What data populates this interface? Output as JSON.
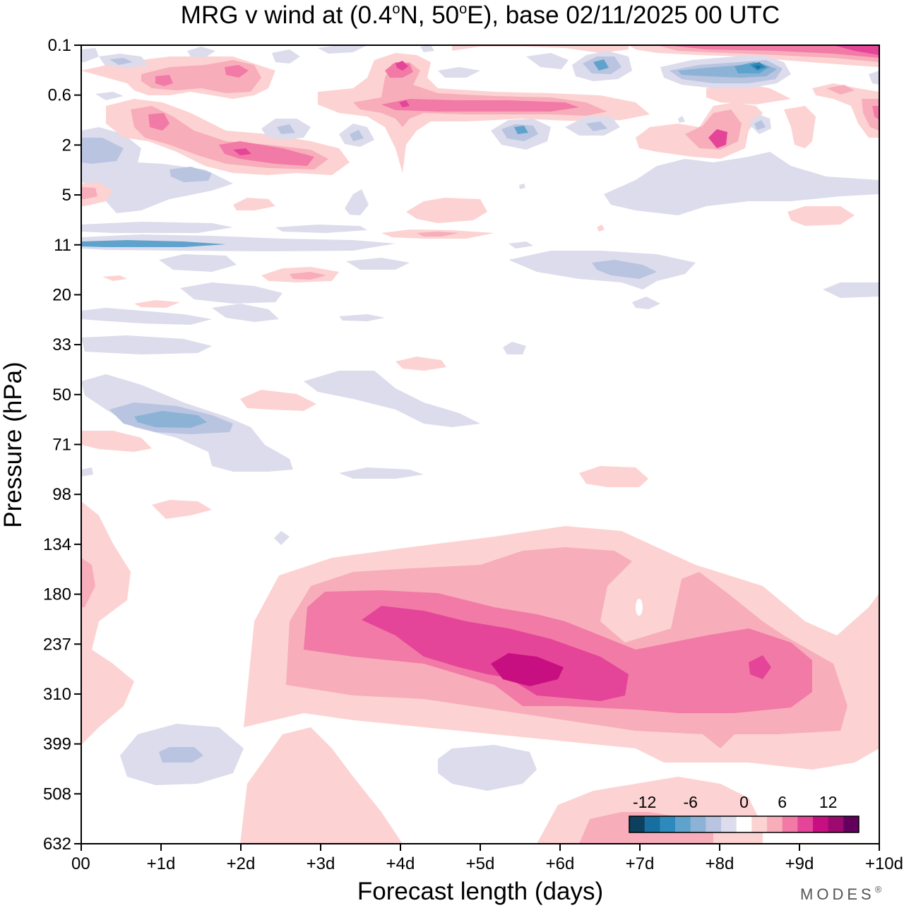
{
  "chart_data": {
    "type": "contour",
    "title": "MRG v wind at (0.4°N, 50°E),  base 02/11/2025  00 UTC",
    "title_parts": {
      "prefix": "MRG v wind at (0.4",
      "deg1": "o",
      "mid": "N, 50",
      "deg2": "o",
      "suffix": "E),  base 02/11/2025  00 UTC"
    },
    "xlabel": "Forecast length (days)",
    "ylabel": "Pressure (hPa)",
    "x_ticks": [
      "00",
      "+1d",
      "+2d",
      "+3d",
      "+4d",
      "+5d",
      "+6d",
      "+7d",
      "+8d",
      "+9d",
      "+10d"
    ],
    "xlim": [
      0,
      10
    ],
    "y_ticks": [
      "0.1",
      "0.6",
      "2",
      "5",
      "11",
      "20",
      "33",
      "50",
      "71",
      "98",
      "134",
      "180",
      "237",
      "310",
      "399",
      "508",
      "632"
    ],
    "y_scale": "log-pressure (top = lowest pressure)",
    "colorbar": {
      "labels": [
        "-12",
        "-6",
        "0",
        "6",
        "12"
      ],
      "levels": [
        -14,
        -12,
        -10,
        -8,
        -6,
        -4,
        -2,
        0,
        2,
        4,
        6,
        8,
        10,
        12,
        14
      ],
      "colors": [
        "#0d3f5e",
        "#176ea0",
        "#2e89bc",
        "#5fa3cc",
        "#8cb3d6",
        "#b9c4e0",
        "#dcdcec",
        "#ffffff",
        "#fcd3d2",
        "#f8adbb",
        "#f27aa6",
        "#e44599",
        "#c80f82",
        "#9c0a70",
        "#63005e"
      ]
    },
    "features": [
      {
        "name": "positive-maximum",
        "value": 12,
        "x_days": 5.5,
        "pressure_hPa": 260
      },
      {
        "name": "positive-core",
        "value": 10,
        "x_days": 5.0,
        "pressure_hPa": 240
      },
      {
        "name": "secondary-maximum",
        "value": 10,
        "x_days": 8.5,
        "pressure_hPa": 260
      },
      {
        "name": "negative-core",
        "value": -6,
        "x_days": 1.2,
        "pressure_hPa": 60
      },
      {
        "name": "negative-lower",
        "value": -6,
        "x_days": 1.2,
        "pressure_hPa": 399
      },
      {
        "name": "negative-upper",
        "value": -10,
        "x_days": 8.5,
        "pressure_hPa": 0.2
      },
      {
        "name": "positive-upper",
        "value": 10,
        "x_days": 8.0,
        "pressure_hPa": 2
      }
    ],
    "watermark": "MODES",
    "watermark_mark": "®"
  }
}
